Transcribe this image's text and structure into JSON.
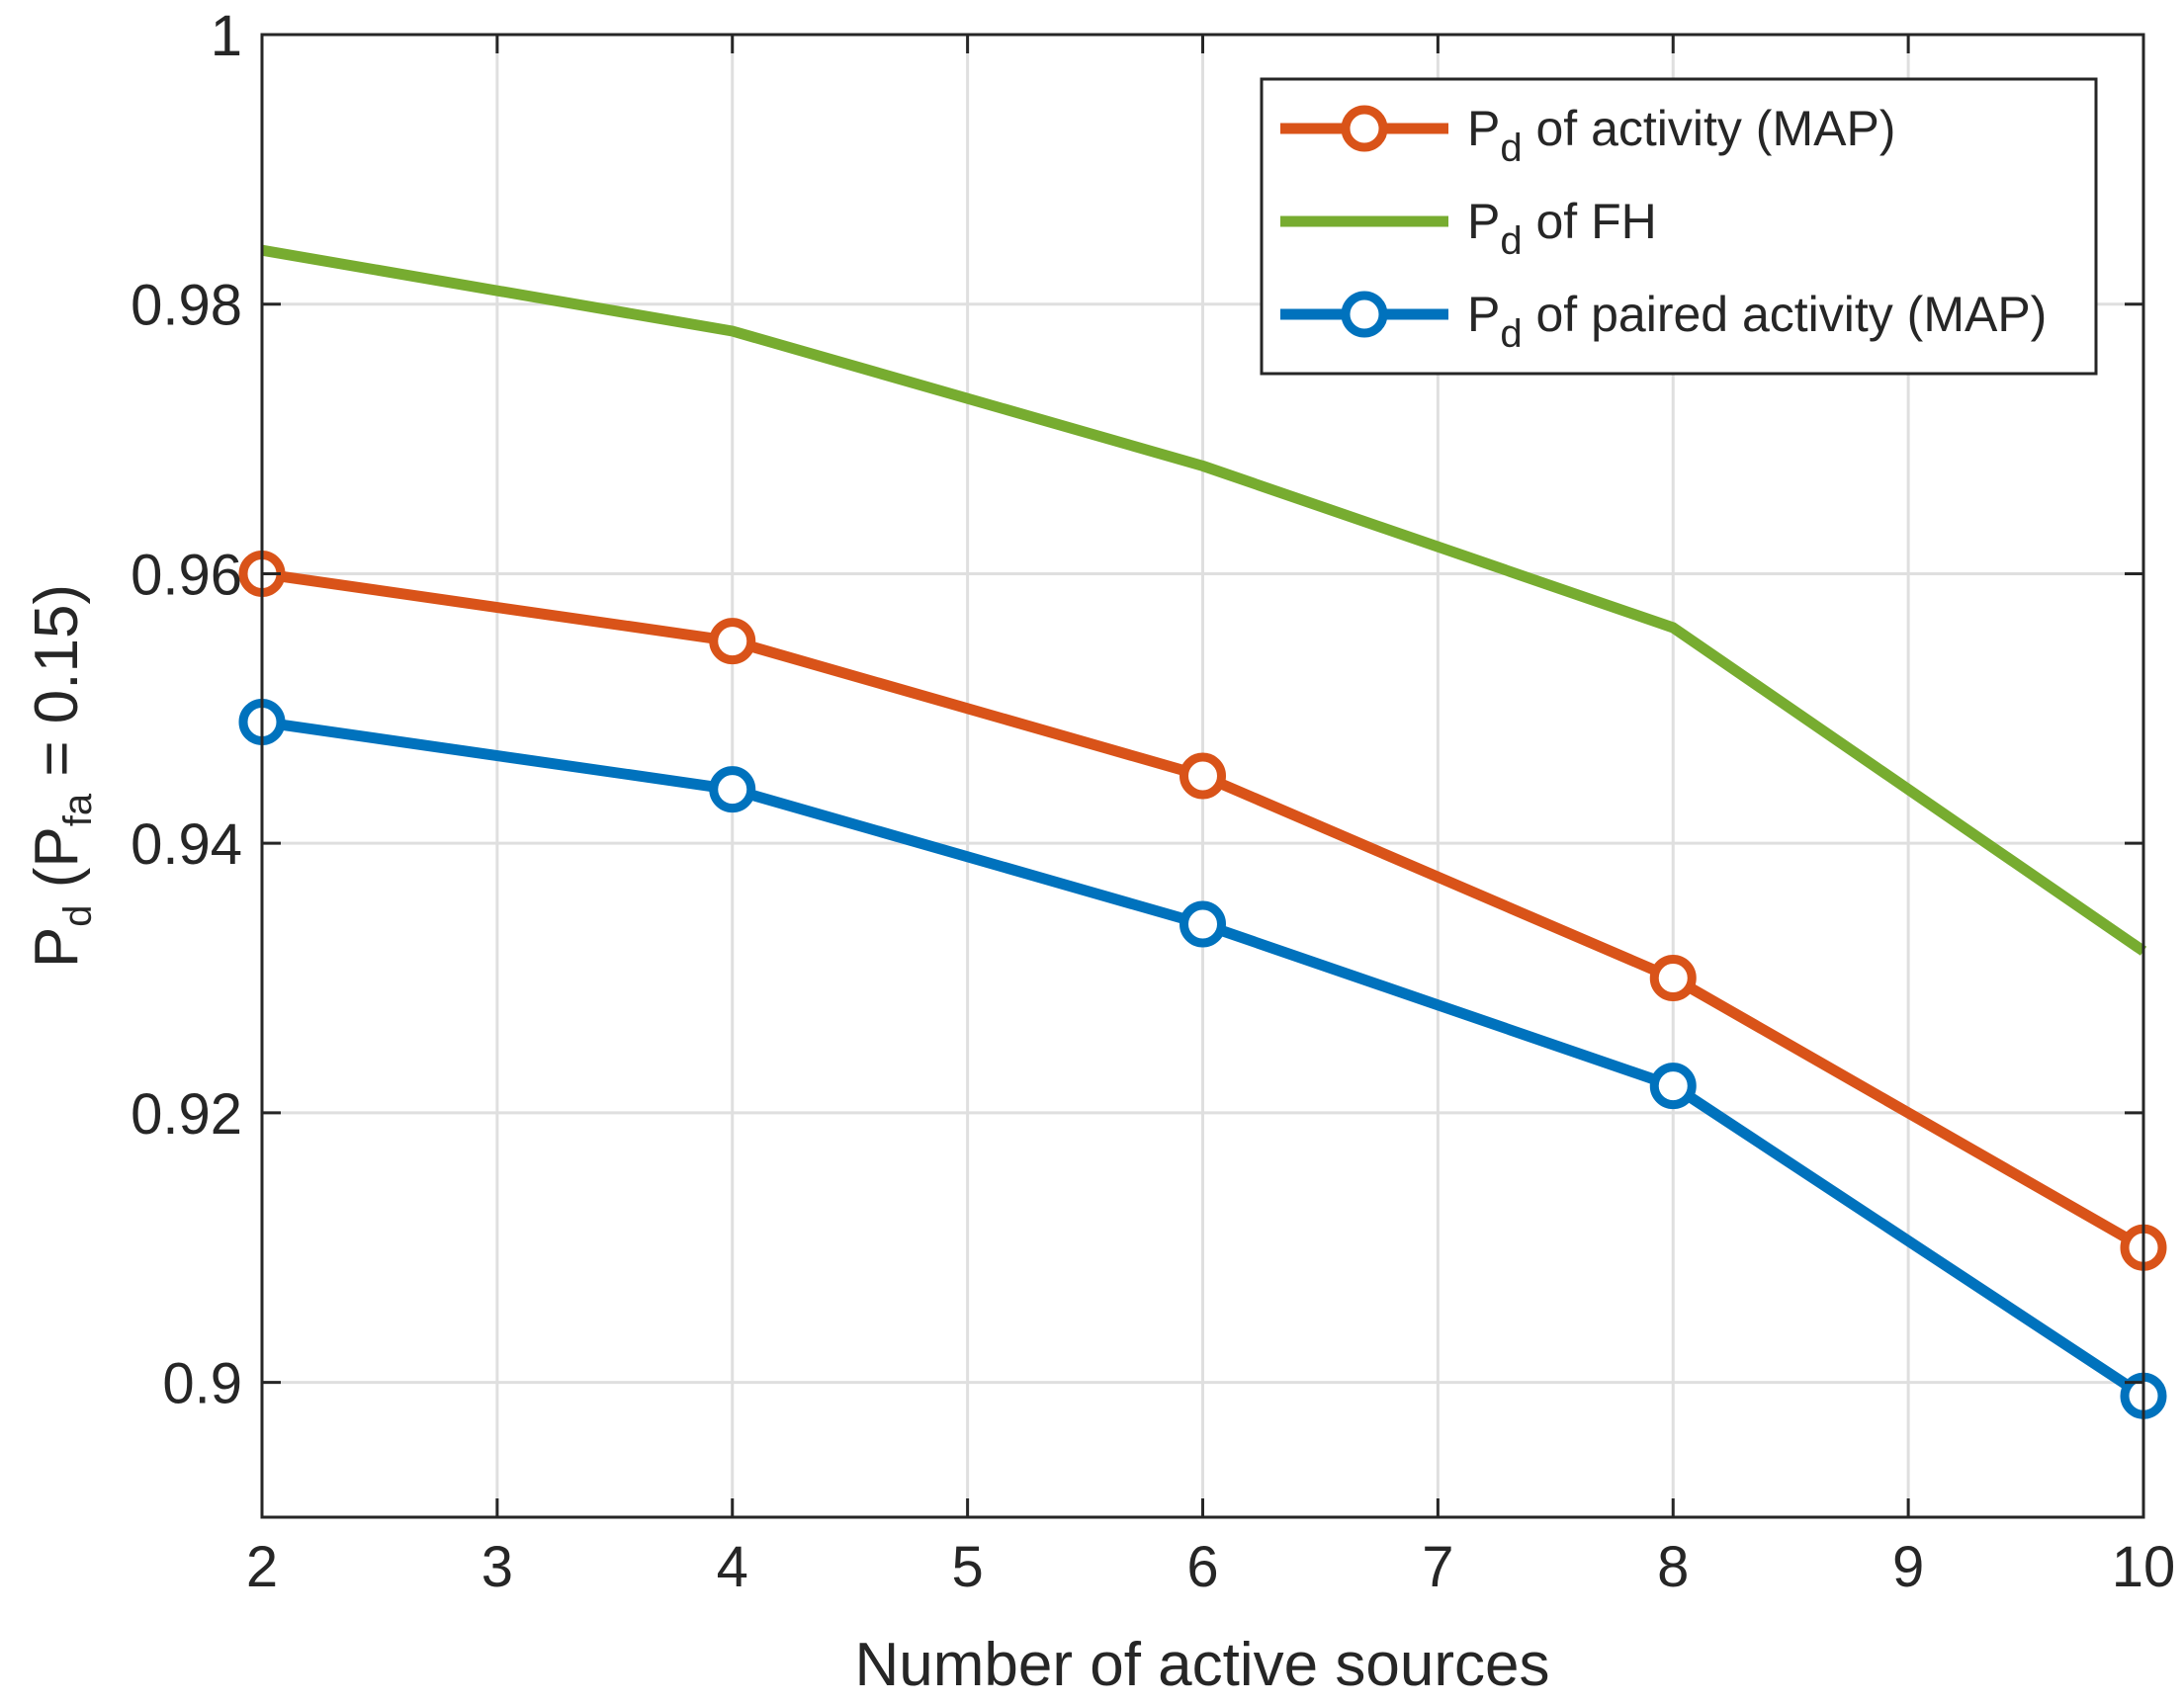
{
  "chart_data": {
    "type": "line",
    "title": "",
    "xlabel": "Number of active sources",
    "ylabel": {
      "main": "P",
      "main_sub": "d",
      "paren_open": " (P",
      "paren_sub": "fa",
      "rest": " = 0.15)"
    },
    "xlim": [
      2,
      10
    ],
    "ylim": [
      0.89,
      1.0
    ],
    "x_ticks": [
      2,
      3,
      4,
      5,
      6,
      7,
      8,
      9,
      10
    ],
    "x_tick_labels": [
      "2",
      "3",
      "4",
      "5",
      "6",
      "7",
      "8",
      "9",
      "10"
    ],
    "y_ticks": [
      0.9,
      0.92,
      0.94,
      0.96,
      0.98,
      1.0
    ],
    "y_tick_labels": [
      "0.9",
      "0.92",
      "0.94",
      "0.96",
      "0.98",
      "1"
    ],
    "grid": true,
    "legend_position": "top-right",
    "series": [
      {
        "name": "Pd of activity (MAP)",
        "label_main": "P",
        "label_sub": "d",
        "label_rest": " of activity (MAP)",
        "color": "#D95319",
        "marker": "circle",
        "x": [
          2,
          4,
          6,
          8,
          10
        ],
        "y": [
          0.96,
          0.955,
          0.945,
          0.93,
          0.91
        ]
      },
      {
        "name": "Pd of FH",
        "label_main": "P",
        "label_sub": "d",
        "label_rest": " of FH",
        "color": "#77AC30",
        "marker": "none",
        "x": [
          2,
          4,
          6,
          8,
          10
        ],
        "y": [
          0.984,
          0.978,
          0.968,
          0.956,
          0.932
        ]
      },
      {
        "name": "Pd of paired activity (MAP)",
        "label_main": "P",
        "label_sub": "d",
        "label_rest": " of paired activity (MAP)",
        "color": "#0072BD",
        "marker": "circle",
        "x": [
          2,
          4,
          6,
          8,
          10
        ],
        "y": [
          0.949,
          0.944,
          0.934,
          0.922,
          0.899
        ]
      }
    ]
  }
}
